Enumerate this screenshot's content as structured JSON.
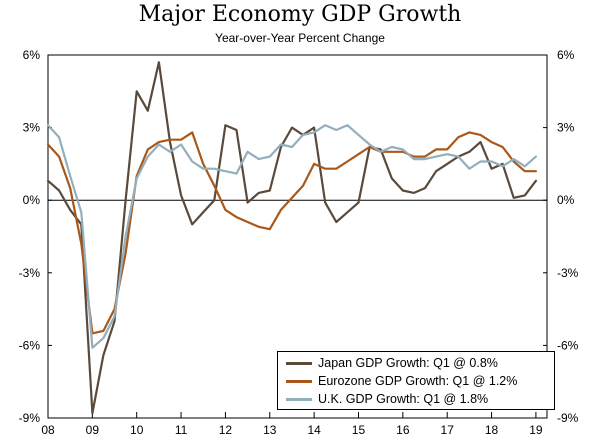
{
  "chart_data": {
    "type": "line",
    "title": "Major Economy GDP Growth",
    "subtitle": "Year-over-Year Percent Change",
    "xlabel": "",
    "ylabel": "",
    "xlim": [
      2008.0,
      2019.25
    ],
    "ylim": [
      -9,
      6
    ],
    "x_ticks": [
      {
        "value": 2008,
        "label": "08"
      },
      {
        "value": 2009,
        "label": "09"
      },
      {
        "value": 2010,
        "label": "10"
      },
      {
        "value": 2011,
        "label": "11"
      },
      {
        "value": 2012,
        "label": "12"
      },
      {
        "value": 2013,
        "label": "13"
      },
      {
        "value": 2014,
        "label": "14"
      },
      {
        "value": 2015,
        "label": "15"
      },
      {
        "value": 2016,
        "label": "16"
      },
      {
        "value": 2017,
        "label": "17"
      },
      {
        "value": 2018,
        "label": "18"
      },
      {
        "value": 2019,
        "label": "19"
      }
    ],
    "y_ticks": [
      {
        "value": 6,
        "label": "6%"
      },
      {
        "value": 3,
        "label": "3%"
      },
      {
        "value": 0,
        "label": "0%"
      },
      {
        "value": -3,
        "label": "-3%"
      },
      {
        "value": -6,
        "label": "-6%"
      },
      {
        "value": -9,
        "label": "-9%"
      }
    ],
    "x_start": 2008.0,
    "x_step": 0.25,
    "series": [
      {
        "name": "Japan GDP Growth: Q1 @ 0.8%",
        "color": "#5a4a3c",
        "values": [
          0.8,
          0.4,
          -0.4,
          -1.0,
          -8.8,
          -6.4,
          -5.0,
          0.0,
          4.5,
          3.7,
          5.7,
          2.4,
          0.2,
          -1.0,
          -0.5,
          0.0,
          3.1,
          2.9,
          -0.1,
          0.3,
          0.4,
          2.2,
          3.0,
          2.7,
          3.0,
          -0.1,
          -0.9,
          -0.5,
          -0.1,
          2.2,
          2.1,
          0.9,
          0.4,
          0.3,
          0.5,
          1.2,
          1.5,
          1.8,
          2.0,
          2.4,
          1.3,
          1.5,
          0.1,
          0.2,
          0.8
        ]
      },
      {
        "name": "Eurozone GDP Growth: Q1 @ 1.2%",
        "color": "#a9581b",
        "values": [
          2.3,
          1.8,
          0.5,
          -1.8,
          -5.5,
          -5.4,
          -4.5,
          -2.2,
          1.0,
          2.1,
          2.4,
          2.5,
          2.5,
          2.8,
          1.5,
          0.6,
          -0.4,
          -0.7,
          -0.9,
          -1.1,
          -1.2,
          -0.4,
          0.1,
          0.6,
          1.5,
          1.3,
          1.3,
          1.6,
          1.9,
          2.2,
          2.0,
          2.0,
          2.0,
          1.8,
          1.8,
          2.1,
          2.1,
          2.6,
          2.8,
          2.7,
          2.4,
          2.2,
          1.6,
          1.2,
          1.2
        ]
      },
      {
        "name": "U.K. GDP Growth: Q1 @ 1.8%",
        "color": "#93aebc",
        "values": [
          3.1,
          2.6,
          1.0,
          -0.5,
          -6.1,
          -5.7,
          -4.8,
          -1.5,
          0.9,
          1.8,
          2.3,
          2.0,
          2.3,
          1.6,
          1.3,
          1.3,
          1.2,
          1.1,
          2.0,
          1.7,
          1.8,
          2.3,
          2.2,
          2.7,
          2.8,
          3.1,
          2.9,
          3.1,
          2.7,
          2.3,
          2.0,
          2.2,
          2.1,
          1.7,
          1.7,
          1.8,
          1.9,
          1.8,
          1.3,
          1.6,
          1.6,
          1.4,
          1.7,
          1.4,
          1.8
        ]
      }
    ],
    "legend_position": "bottom-right"
  }
}
